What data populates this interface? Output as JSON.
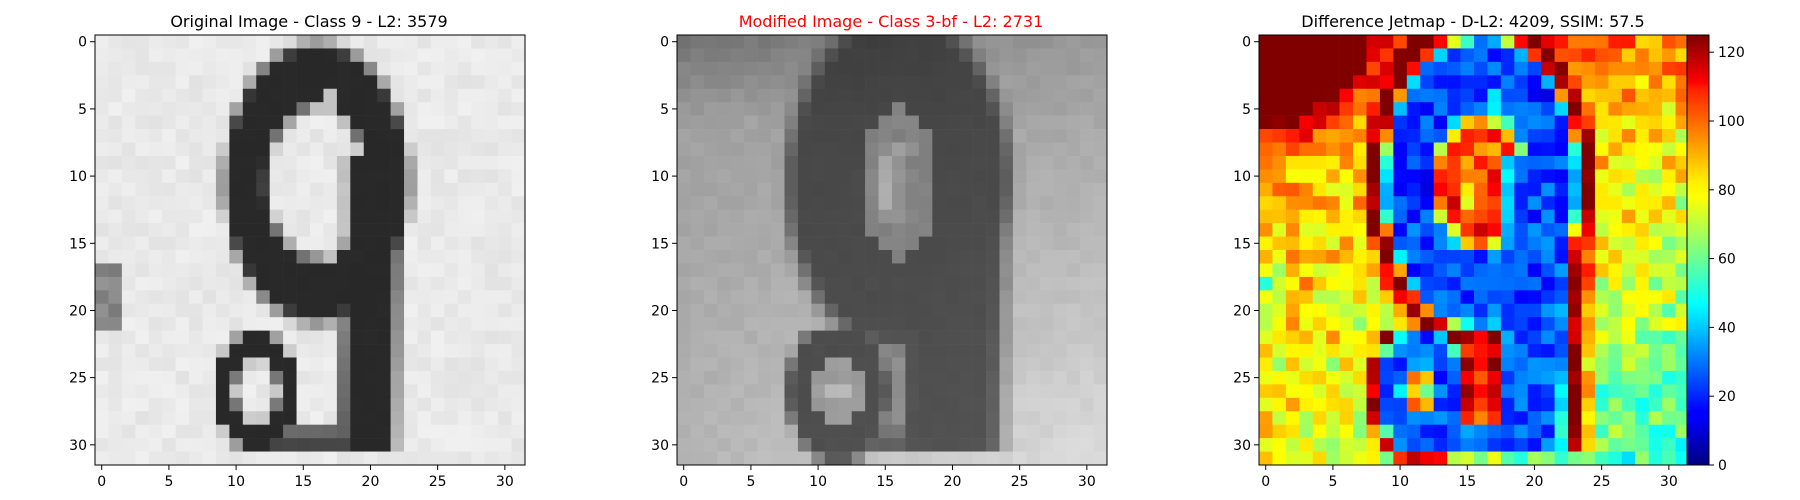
{
  "figure": {
    "background": "#ffffff"
  },
  "chart_data": [
    {
      "type": "heatmap",
      "title": "Original Image - Class 9 - L2: 3579",
      "title_color": "#000000",
      "colormap": "gray",
      "grid": false,
      "xlim": [
        -0.5,
        31.5
      ],
      "ylim": [
        31.5,
        -0.5
      ],
      "xticks": [
        0,
        5,
        10,
        15,
        20,
        25,
        30
      ],
      "yticks": [
        0,
        5,
        10,
        15,
        20,
        25,
        30
      ],
      "xtick_labels": [
        "0",
        "5",
        "10",
        "15",
        "20",
        "25",
        "30"
      ],
      "ytick_labels": [
        "0",
        "5",
        "10",
        "15",
        "20",
        "25",
        "30"
      ],
      "content": "32x32 grayscale digit 9 (dark strokes on light background)"
    },
    {
      "type": "heatmap",
      "title": "Modified Image - Class 3-bf - L2: 2731",
      "title_color": "#ff0000",
      "colormap": "gray",
      "grid": false,
      "xlim": [
        -0.5,
        31.5
      ],
      "ylim": [
        31.5,
        -0.5
      ],
      "xticks": [
        0,
        5,
        10,
        15,
        20,
        25,
        30
      ],
      "yticks": [
        0,
        5,
        10,
        15,
        20,
        25,
        30
      ],
      "xtick_labels": [
        "0",
        "5",
        "10",
        "15",
        "20",
        "25",
        "30"
      ],
      "ytick_labels": [
        "0",
        "5",
        "10",
        "15",
        "20",
        "25",
        "30"
      ],
      "content": "32x32 grayscale blurred digit 9 with darker top-left background"
    },
    {
      "type": "heatmap",
      "title": "Difference Jetmap - D-L2: 4209, SSIM: 57.5",
      "title_color": "#000000",
      "colormap": "jet",
      "grid": false,
      "xlim": [
        -0.5,
        31.5
      ],
      "ylim": [
        31.5,
        -0.5
      ],
      "xticks": [
        0,
        5,
        10,
        15,
        20,
        25,
        30
      ],
      "yticks": [
        0,
        5,
        10,
        15,
        20,
        25,
        30
      ],
      "xtick_labels": [
        "0",
        "5",
        "10",
        "15",
        "20",
        "25",
        "30"
      ],
      "ytick_labels": [
        "0",
        "5",
        "10",
        "15",
        "20",
        "25",
        "30"
      ],
      "colorbar": {
        "range": [
          0,
          125
        ],
        "ticks": [
          0,
          20,
          40,
          60,
          80,
          100,
          120
        ],
        "tick_labels": [
          "0",
          "20",
          "40",
          "60",
          "80",
          "100",
          "120"
        ]
      },
      "content": "32x32 absolute difference map; high (red) in top-left corner, low (blue) along digit strokes"
    }
  ]
}
